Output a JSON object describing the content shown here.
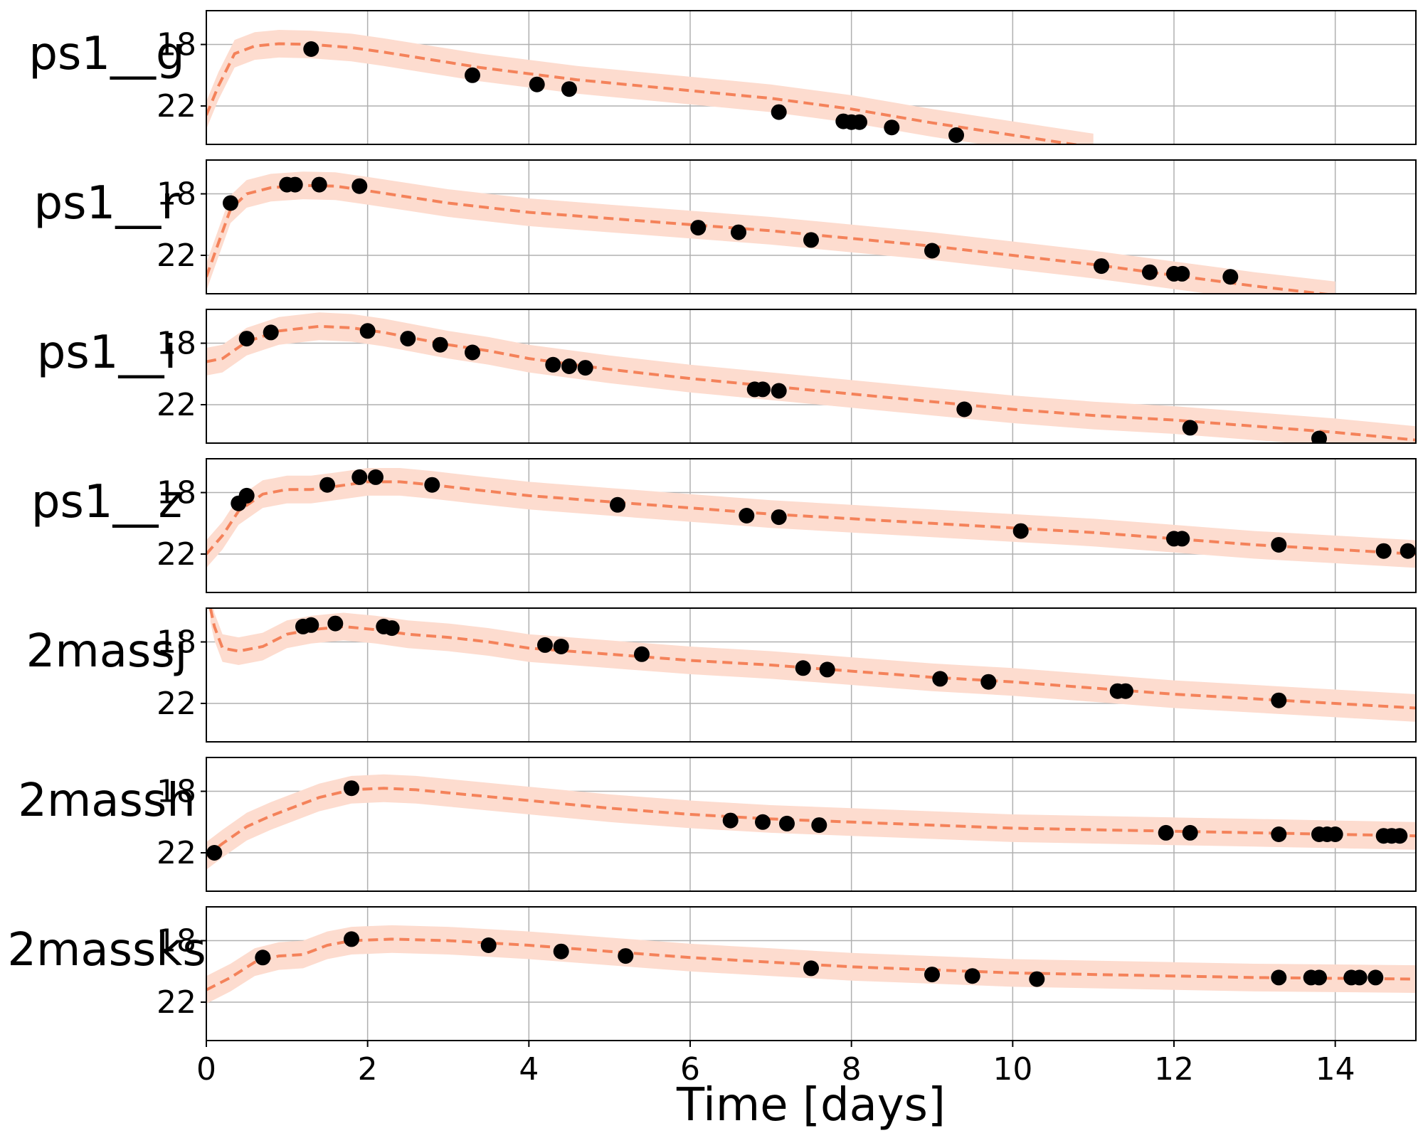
{
  "chart_data": {
    "type": "line",
    "xlabel": "Time [days]",
    "xlim": [
      0,
      15
    ],
    "x_ticks": [
      0,
      2,
      4,
      6,
      8,
      10,
      12,
      14
    ],
    "y_ticks": [
      18,
      22
    ],
    "y_inverted": true,
    "grid": true,
    "colors": {
      "model": "#f4825a",
      "band": "#fddccf",
      "points": "#000000"
    },
    "panels": [
      {
        "label": "ps1__g",
        "ylim": [
          15.8,
          24.5
        ],
        "model": [
          [
            0,
            22.6
          ],
          [
            0.15,
            20.7
          ],
          [
            0.35,
            18.6
          ],
          [
            0.6,
            18.1
          ],
          [
            0.9,
            17.95
          ],
          [
            1.3,
            18.0
          ],
          [
            1.8,
            18.2
          ],
          [
            2.2,
            18.5
          ],
          [
            2.8,
            19.0
          ],
          [
            3.4,
            19.5
          ],
          [
            4.0,
            19.9
          ],
          [
            4.6,
            20.3
          ],
          [
            5.2,
            20.6
          ],
          [
            6.0,
            21.0
          ],
          [
            7.0,
            21.5
          ],
          [
            8.0,
            22.2
          ],
          [
            9.0,
            23.1
          ],
          [
            10.0,
            23.9
          ],
          [
            11.0,
            24.7
          ]
        ],
        "points": [
          [
            1.3,
            18.3
          ],
          [
            3.3,
            20.0
          ],
          [
            4.1,
            20.6
          ],
          [
            4.5,
            20.9
          ],
          [
            7.1,
            22.4
          ],
          [
            7.9,
            23.0
          ],
          [
            8.0,
            23.05
          ],
          [
            8.1,
            23.05
          ],
          [
            8.5,
            23.4
          ],
          [
            9.3,
            23.9
          ]
        ]
      },
      {
        "label": "ps1__r",
        "ylim": [
          15.8,
          24.5
        ],
        "model": [
          [
            0,
            23.4
          ],
          [
            0.15,
            21.2
          ],
          [
            0.3,
            19.0
          ],
          [
            0.5,
            18.0
          ],
          [
            0.8,
            17.6
          ],
          [
            1.2,
            17.45
          ],
          [
            1.6,
            17.5
          ],
          [
            2.0,
            17.8
          ],
          [
            2.5,
            18.2
          ],
          [
            3.0,
            18.6
          ],
          [
            3.5,
            18.9
          ],
          [
            4.0,
            19.2
          ],
          [
            5.0,
            19.6
          ],
          [
            6.0,
            20.0
          ],
          [
            7.0,
            20.4
          ],
          [
            8.0,
            20.9
          ],
          [
            9.0,
            21.4
          ],
          [
            10.0,
            22.0
          ],
          [
            11.0,
            22.6
          ],
          [
            12.0,
            23.3
          ],
          [
            13.0,
            24.0
          ],
          [
            14.0,
            24.6
          ]
        ],
        "points": [
          [
            0.3,
            18.6
          ],
          [
            1.0,
            17.4
          ],
          [
            1.1,
            17.4
          ],
          [
            1.4,
            17.4
          ],
          [
            1.9,
            17.5
          ],
          [
            6.1,
            20.2
          ],
          [
            6.6,
            20.5
          ],
          [
            7.5,
            21.0
          ],
          [
            9.0,
            21.7
          ],
          [
            11.1,
            22.7
          ],
          [
            11.7,
            23.1
          ],
          [
            12.0,
            23.2
          ],
          [
            12.1,
            23.2
          ],
          [
            12.7,
            23.4
          ]
        ]
      },
      {
        "label": "ps1__i",
        "ylim": [
          15.8,
          24.5
        ],
        "model": [
          [
            0,
            19.2
          ],
          [
            0.2,
            19.0
          ],
          [
            0.5,
            17.9
          ],
          [
            0.9,
            17.2
          ],
          [
            1.4,
            16.9
          ],
          [
            1.8,
            17.0
          ],
          [
            2.2,
            17.3
          ],
          [
            2.6,
            17.7
          ],
          [
            3.0,
            18.1
          ],
          [
            3.5,
            18.5
          ],
          [
            4.0,
            19.0
          ],
          [
            5.0,
            19.7
          ],
          [
            6.0,
            20.3
          ],
          [
            7.0,
            20.8
          ],
          [
            8.0,
            21.3
          ],
          [
            9.0,
            21.8
          ],
          [
            10.0,
            22.3
          ],
          [
            11.0,
            22.7
          ],
          [
            12.0,
            23.0
          ],
          [
            13.0,
            23.4
          ],
          [
            14.0,
            23.8
          ],
          [
            15.0,
            24.3
          ]
        ],
        "points": [
          [
            0.5,
            17.7
          ],
          [
            0.8,
            17.3
          ],
          [
            2.0,
            17.2
          ],
          [
            2.5,
            17.7
          ],
          [
            2.9,
            18.1
          ],
          [
            3.3,
            18.6
          ],
          [
            4.3,
            19.4
          ],
          [
            4.5,
            19.5
          ],
          [
            4.7,
            19.6
          ],
          [
            6.8,
            21.0
          ],
          [
            6.9,
            21.0
          ],
          [
            7.1,
            21.1
          ],
          [
            9.4,
            22.3
          ],
          [
            12.2,
            23.5
          ],
          [
            13.8,
            24.2
          ]
        ]
      },
      {
        "label": "ps1__z",
        "ylim": [
          15.8,
          24.5
        ],
        "model": [
          [
            0,
            22.0
          ],
          [
            0.2,
            20.8
          ],
          [
            0.4,
            19.2
          ],
          [
            0.7,
            18.1
          ],
          [
            1.0,
            17.8
          ],
          [
            1.3,
            17.8
          ],
          [
            1.6,
            17.6
          ],
          [
            2.0,
            17.3
          ],
          [
            2.4,
            17.3
          ],
          [
            2.8,
            17.5
          ],
          [
            3.3,
            17.8
          ],
          [
            4.0,
            18.2
          ],
          [
            5.0,
            18.6
          ],
          [
            6.0,
            19.0
          ],
          [
            7.0,
            19.4
          ],
          [
            8.0,
            19.7
          ],
          [
            9.0,
            20.0
          ],
          [
            10.0,
            20.3
          ],
          [
            11.0,
            20.6
          ],
          [
            12.0,
            21.0
          ],
          [
            13.0,
            21.4
          ],
          [
            14.0,
            21.7
          ],
          [
            15.0,
            22.0
          ]
        ],
        "points": [
          [
            0.4,
            18.7
          ],
          [
            0.5,
            18.2
          ],
          [
            1.5,
            17.5
          ],
          [
            1.9,
            17.0
          ],
          [
            2.1,
            17.0
          ],
          [
            2.8,
            17.5
          ],
          [
            5.1,
            18.8
          ],
          [
            6.7,
            19.5
          ],
          [
            7.1,
            19.6
          ],
          [
            10.1,
            20.5
          ],
          [
            12.0,
            21.0
          ],
          [
            12.1,
            21.0
          ],
          [
            13.3,
            21.4
          ],
          [
            14.6,
            21.8
          ],
          [
            14.9,
            21.8
          ]
        ]
      },
      {
        "label": "2massj",
        "ylim": [
          15.8,
          24.5
        ],
        "model": [
          [
            0.05,
            15.8
          ],
          [
            0.1,
            17.0
          ],
          [
            0.2,
            18.4
          ],
          [
            0.4,
            18.6
          ],
          [
            0.7,
            18.3
          ],
          [
            1.0,
            17.5
          ],
          [
            1.3,
            17.2
          ],
          [
            1.7,
            17.0
          ],
          [
            2.1,
            17.2
          ],
          [
            2.5,
            17.5
          ],
          [
            3.0,
            17.7
          ],
          [
            3.5,
            18.0
          ],
          [
            4.0,
            18.4
          ],
          [
            5.0,
            18.8
          ],
          [
            6.0,
            19.2
          ],
          [
            7.0,
            19.5
          ],
          [
            8.0,
            19.9
          ],
          [
            9.0,
            20.3
          ],
          [
            10.0,
            20.6
          ],
          [
            11.0,
            21.0
          ],
          [
            12.0,
            21.4
          ],
          [
            13.0,
            21.7
          ],
          [
            14.0,
            22.0
          ],
          [
            15.0,
            22.3
          ]
        ],
        "points": [
          [
            1.2,
            17.0
          ],
          [
            1.3,
            16.9
          ],
          [
            1.6,
            16.8
          ],
          [
            2.2,
            17.0
          ],
          [
            2.3,
            17.1
          ],
          [
            4.2,
            18.2
          ],
          [
            4.4,
            18.3
          ],
          [
            5.4,
            18.8
          ],
          [
            7.4,
            19.7
          ],
          [
            7.7,
            19.8
          ],
          [
            9.1,
            20.4
          ],
          [
            9.7,
            20.6
          ],
          [
            11.3,
            21.2
          ],
          [
            11.4,
            21.2
          ],
          [
            13.3,
            21.8
          ]
        ]
      },
      {
        "label": "2massh",
        "ylim": [
          15.8,
          24.5
        ],
        "model": [
          [
            0,
            22.2
          ],
          [
            0.2,
            21.4
          ],
          [
            0.5,
            20.3
          ],
          [
            0.8,
            19.6
          ],
          [
            1.1,
            19.0
          ],
          [
            1.4,
            18.4
          ],
          [
            1.8,
            17.9
          ],
          [
            2.2,
            17.8
          ],
          [
            2.6,
            17.9
          ],
          [
            3.0,
            18.1
          ],
          [
            4.0,
            18.6
          ],
          [
            5.0,
            19.1
          ],
          [
            6.0,
            19.5
          ],
          [
            7.0,
            19.8
          ],
          [
            8.0,
            20.0
          ],
          [
            9.0,
            20.2
          ],
          [
            10.0,
            20.4
          ],
          [
            11.0,
            20.5
          ],
          [
            12.0,
            20.6
          ],
          [
            13.0,
            20.7
          ],
          [
            14.0,
            20.8
          ],
          [
            15.0,
            20.9
          ]
        ],
        "points": [
          [
            0.1,
            22.0
          ],
          [
            1.8,
            17.8
          ],
          [
            6.5,
            19.9
          ],
          [
            6.9,
            20.0
          ],
          [
            7.2,
            20.1
          ],
          [
            7.6,
            20.2
          ],
          [
            11.9,
            20.7
          ],
          [
            12.2,
            20.7
          ],
          [
            13.3,
            20.8
          ],
          [
            13.8,
            20.8
          ],
          [
            13.9,
            20.8
          ],
          [
            14.0,
            20.8
          ],
          [
            14.6,
            20.9
          ],
          [
            14.7,
            20.9
          ],
          [
            14.8,
            20.9
          ]
        ]
      },
      {
        "label": "2massks",
        "ylim": [
          15.8,
          24.5
        ],
        "model": [
          [
            0,
            21.2
          ],
          [
            0.3,
            20.4
          ],
          [
            0.6,
            19.4
          ],
          [
            0.9,
            19.0
          ],
          [
            1.2,
            18.9
          ],
          [
            1.5,
            18.3
          ],
          [
            1.8,
            18.0
          ],
          [
            2.3,
            17.9
          ],
          [
            3.0,
            18.0
          ],
          [
            4.0,
            18.3
          ],
          [
            5.0,
            18.7
          ],
          [
            6.0,
            19.1
          ],
          [
            7.0,
            19.4
          ],
          [
            8.0,
            19.7
          ],
          [
            9.0,
            19.9
          ],
          [
            10.0,
            20.1
          ],
          [
            11.0,
            20.2
          ],
          [
            12.0,
            20.3
          ],
          [
            13.0,
            20.4
          ],
          [
            14.0,
            20.45
          ],
          [
            15.0,
            20.5
          ]
        ],
        "points": [
          [
            0.7,
            19.1
          ],
          [
            1.8,
            17.9
          ],
          [
            3.5,
            18.3
          ],
          [
            4.4,
            18.7
          ],
          [
            5.2,
            19.0
          ],
          [
            7.5,
            19.8
          ],
          [
            9.0,
            20.2
          ],
          [
            9.5,
            20.3
          ],
          [
            10.3,
            20.5
          ],
          [
            13.3,
            20.4
          ],
          [
            13.7,
            20.4
          ],
          [
            13.8,
            20.4
          ],
          [
            14.2,
            20.4
          ],
          [
            14.3,
            20.4
          ],
          [
            14.5,
            20.4
          ]
        ]
      }
    ]
  }
}
